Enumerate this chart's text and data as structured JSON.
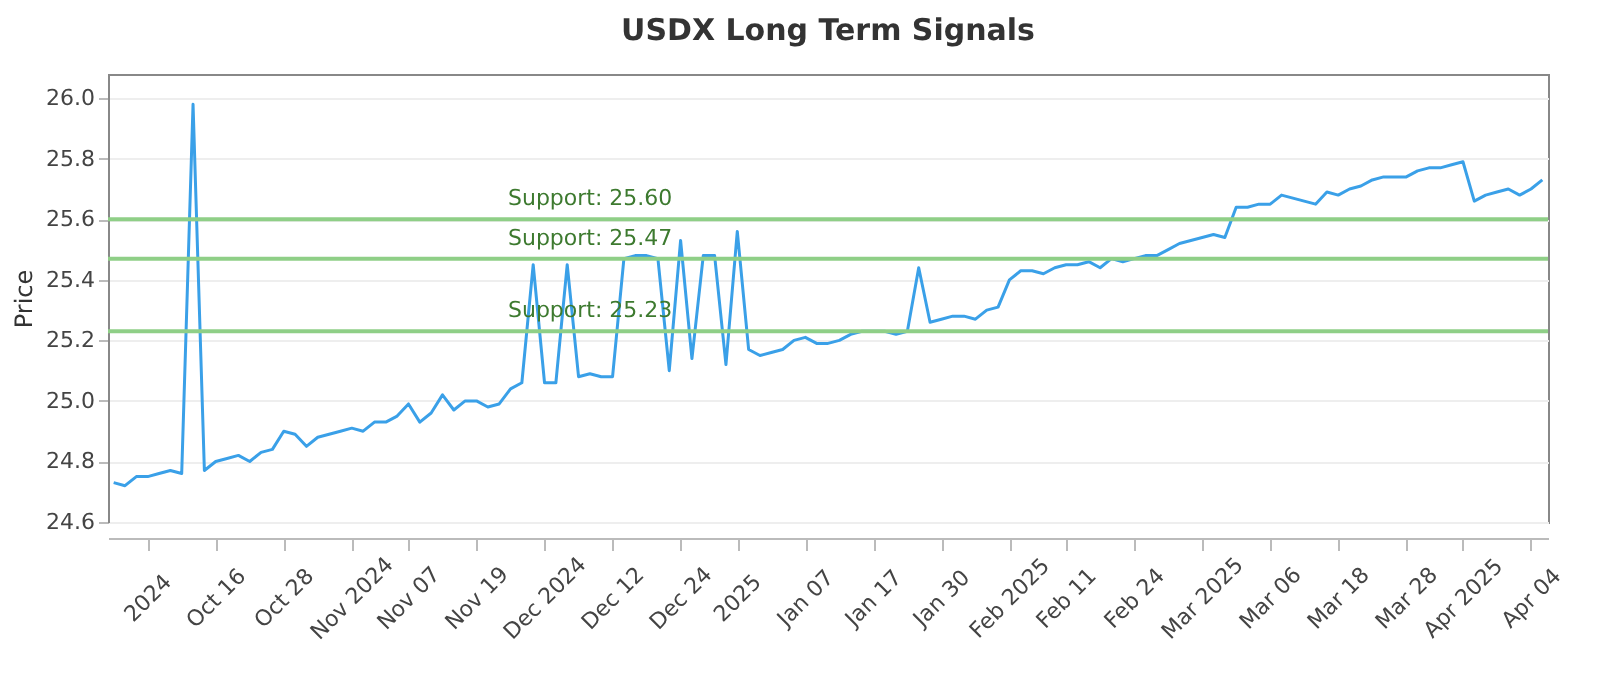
{
  "chart_data": {
    "type": "line",
    "title": "USDX Long Term Signals",
    "ylabel": "Price",
    "categories": [
      null,
      null,
      null,
      "2024",
      null,
      null,
      null,
      null,
      null,
      "Oct 16",
      null,
      null,
      null,
      null,
      null,
      "Oct 28",
      null,
      null,
      null,
      null,
      null,
      "Nov 2024",
      null,
      null,
      null,
      null,
      "Nov 07",
      null,
      null,
      null,
      null,
      null,
      "Nov 19",
      null,
      null,
      null,
      null,
      null,
      "Dec 2024",
      null,
      null,
      null,
      null,
      null,
      "Dec 12",
      null,
      null,
      null,
      null,
      null,
      "Dec 24",
      null,
      null,
      null,
      null,
      "2025",
      null,
      null,
      null,
      null,
      null,
      "Jan 07",
      null,
      null,
      null,
      null,
      null,
      "Jan 17",
      null,
      null,
      null,
      null,
      null,
      "Jan 30",
      null,
      null,
      null,
      null,
      null,
      "Feb 2025",
      null,
      null,
      null,
      null,
      "Feb 11",
      null,
      null,
      null,
      null,
      null,
      "Feb 24",
      null,
      null,
      null,
      null,
      null,
      "Mar 2025",
      null,
      null,
      null,
      null,
      null,
      "Mar 06",
      null,
      null,
      null,
      null,
      null,
      "Mar 18",
      null,
      null,
      null,
      null,
      null,
      "Mar 28",
      null,
      null,
      null,
      null,
      "Apr 2025",
      null,
      null,
      null,
      null,
      null,
      "Apr 04",
      null
    ],
    "series": [
      {
        "color": "#3aa0e8",
        "values": [
          24.73,
          24.72,
          24.75,
          24.75,
          24.76,
          24.77,
          24.76,
          25.98,
          24.77,
          24.8,
          24.81,
          24.82,
          24.8,
          24.83,
          24.84,
          24.9,
          24.89,
          24.85,
          24.88,
          24.89,
          24.9,
          24.91,
          24.9,
          24.93,
          24.93,
          24.95,
          24.99,
          24.93,
          24.96,
          25.02,
          24.97,
          25.0,
          25.0,
          24.98,
          24.99,
          25.04,
          25.06,
          25.45,
          25.06,
          25.06,
          25.45,
          25.08,
          25.09,
          25.08,
          25.08,
          25.47,
          25.48,
          25.48,
          25.47,
          25.1,
          25.53,
          25.14,
          25.48,
          25.48,
          25.12,
          25.56,
          25.17,
          25.15,
          25.16,
          25.17,
          25.2,
          25.21,
          25.19,
          25.19,
          25.2,
          25.22,
          25.23,
          25.23,
          25.23,
          25.22,
          25.23,
          25.44,
          25.26,
          25.27,
          25.28,
          25.28,
          25.27,
          25.3,
          25.31,
          25.4,
          25.43,
          25.43,
          25.42,
          25.44,
          25.45,
          25.45,
          25.46,
          25.44,
          25.47,
          25.46,
          25.47,
          25.48,
          25.48,
          25.5,
          25.52,
          25.53,
          25.54,
          25.55,
          25.54,
          25.64,
          25.64,
          25.65,
          25.65,
          25.68,
          25.67,
          25.66,
          25.65,
          25.69,
          25.68,
          25.7,
          25.71,
          25.73,
          25.74,
          25.74,
          25.74,
          25.76,
          25.77,
          25.77,
          25.78,
          25.79,
          25.66,
          25.68,
          25.69,
          25.7,
          25.68,
          25.7,
          25.73
        ]
      }
    ],
    "ylim": [
      24.6,
      26.08
    ],
    "yticks": [
      24.6,
      24.8,
      {
        "value": 25,
        "label": "25.0"
      },
      25.2,
      25.4,
      25.6,
      25.8,
      {
        "value": 26,
        "label": "26.0"
      }
    ],
    "ref_lines": [
      {
        "axis": "y",
        "value": 25.6,
        "label": "Support: 25.60",
        "color": "#8fcf87"
      },
      {
        "axis": "y",
        "value": 25.47,
        "label": "Support: 25.47",
        "color": "#8fcf87"
      },
      {
        "axis": "y",
        "value": 25.23,
        "label": "Support: 25.23",
        "color": "#8fcf87"
      }
    ],
    "grid": "y",
    "marker": "none",
    "line_style": "solid"
  }
}
